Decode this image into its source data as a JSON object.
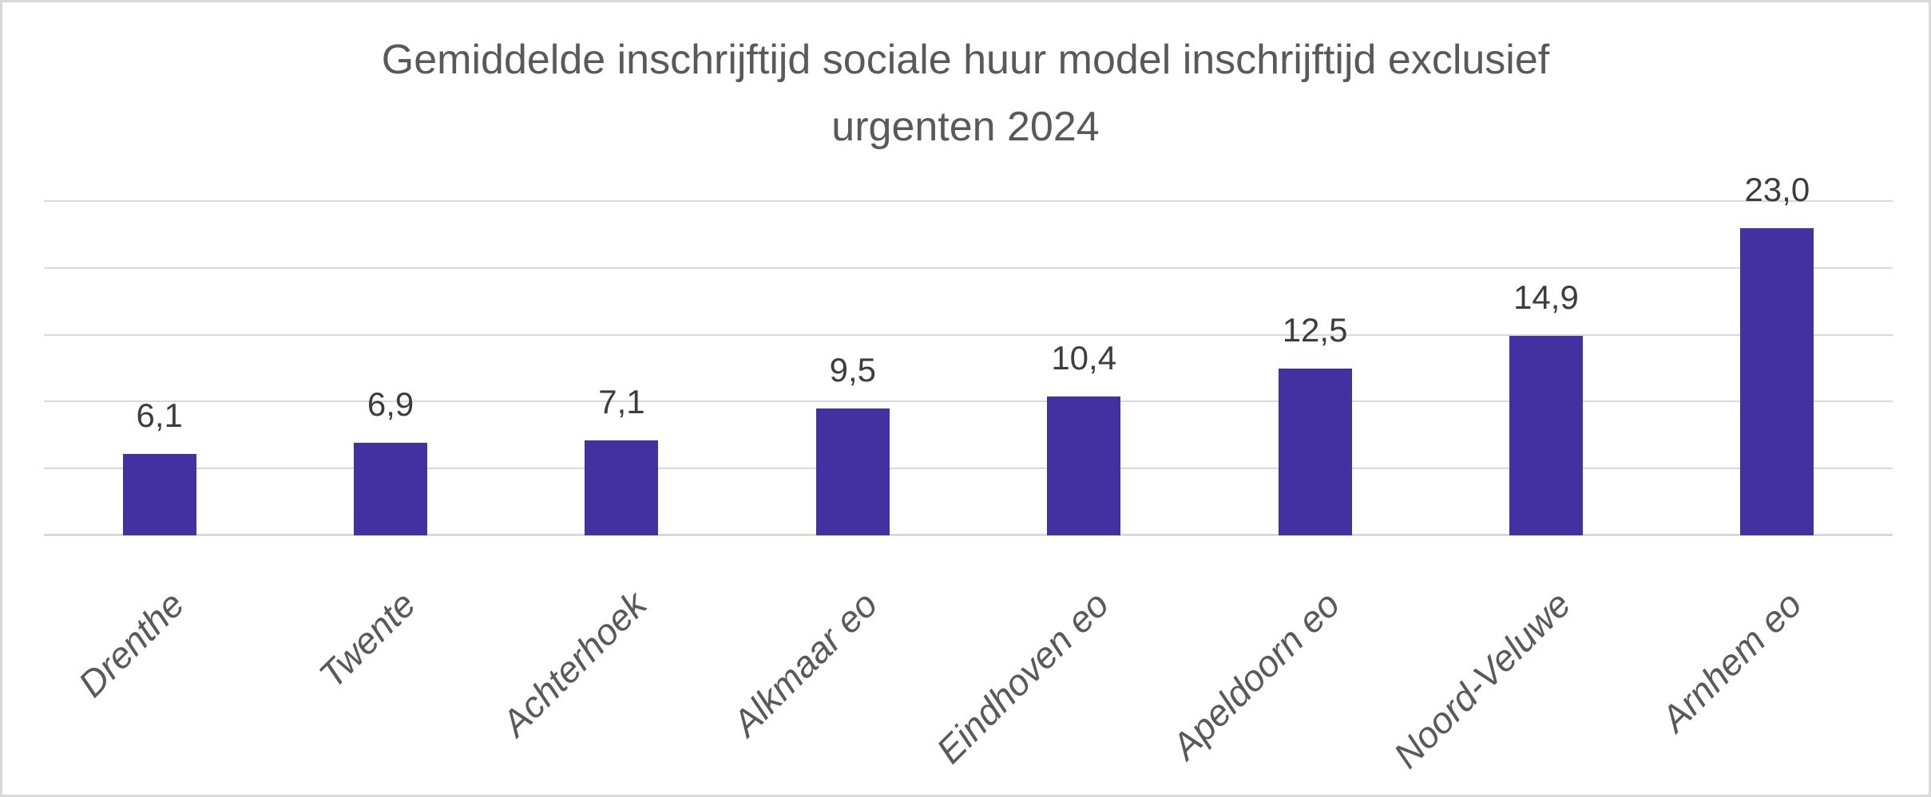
{
  "chart": {
    "title": "Gemiddelde inschrijftijd sociale huur model inschrijftijd exclusief\nurgenten 2024"
  },
  "chart_data": {
    "type": "bar",
    "title": "Gemiddelde inschrijftijd sociale huur model inschrijftijd exclusief urgenten 2024",
    "categories": [
      "Drenthe",
      "Twente",
      "Achterhoek",
      "Alkmaar eo",
      "Eindhoven eo",
      "Apeldoorn eo",
      "Noord-Veluwe",
      "Arnhem eo"
    ],
    "values": [
      6.1,
      6.9,
      7.1,
      9.5,
      10.4,
      12.5,
      14.9,
      23.0
    ],
    "value_labels": [
      "6,1",
      "6,9",
      "7,1",
      "9,5",
      "10,4",
      "12,5",
      "14,9",
      "23,0"
    ],
    "xlabel": "",
    "ylabel": "",
    "ylim": [
      0,
      25
    ],
    "gridline_step": 5,
    "grid": true,
    "legend": false,
    "y_tick_labels_visible": false,
    "category_label_style": "italic, rotated 45 degrees",
    "decimal_separator": ","
  },
  "colors": {
    "bar": "#4331A2",
    "gridline": "#D9D9D9",
    "baseline": "#D9D9D9",
    "frame_border": "#D9D9D9",
    "background": "#FFFFFF",
    "title_text": "#595959",
    "category_text": "#595959",
    "value_text": "#3D3D3D"
  }
}
